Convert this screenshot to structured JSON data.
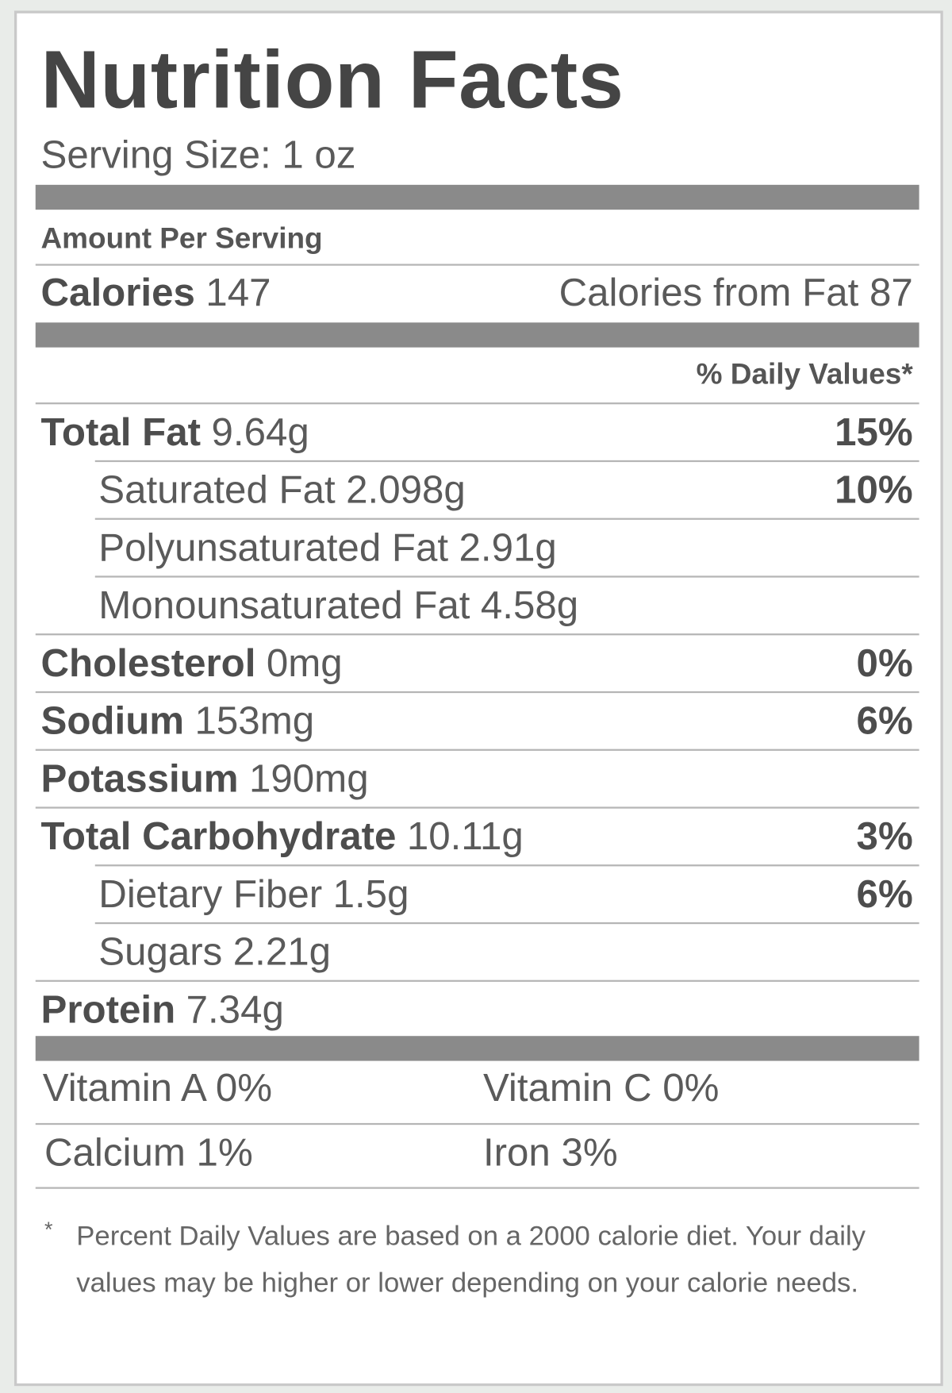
{
  "label": {
    "title": "Nutrition Facts",
    "serving_size": "Serving Size: 1 oz",
    "amount_per_serving": "Amount Per Serving",
    "calories_label": "Calories",
    "calories_value": "147",
    "calories_from_fat": "Calories from Fat 87",
    "daily_values_header": "% Daily Values*",
    "nutrients": [
      {
        "label": "Total Fat",
        "amount": "9.64g",
        "pct": "15%",
        "sub": false
      },
      {
        "label": "Saturated Fat",
        "amount": "2.098g",
        "pct": "10%",
        "sub": true
      },
      {
        "label": "Polyunsaturated Fat",
        "amount": "2.91g",
        "pct": "",
        "sub": true
      },
      {
        "label": "Monounsaturated Fat",
        "amount": "4.58g",
        "pct": "",
        "sub": true
      },
      {
        "label": "Cholesterol",
        "amount": "0mg",
        "pct": "0%",
        "sub": false
      },
      {
        "label": "Sodium",
        "amount": "153mg",
        "pct": "6%",
        "sub": false
      },
      {
        "label": "Potassium",
        "amount": "190mg",
        "pct": "",
        "sub": false
      },
      {
        "label": "Total Carbohydrate",
        "amount": "10.11g",
        "pct": "3%",
        "sub": false
      },
      {
        "label": "Dietary Fiber",
        "amount": "1.5g",
        "pct": "6%",
        "sub": true
      },
      {
        "label": "Sugars",
        "amount": "2.21g",
        "pct": "",
        "sub": true
      },
      {
        "label": "Protein",
        "amount": "7.34g",
        "pct": "",
        "sub": false
      }
    ],
    "vitamins": [
      [
        "Vitamin A 0%",
        "Vitamin C 0%"
      ],
      [
        "Calcium 1%",
        "Iron 3%"
      ]
    ],
    "footnote_marker": "*",
    "footnote": "Percent Daily Values are based on a 2000 calorie diet. Your daily values may be higher or lower depending on your calorie needs."
  }
}
